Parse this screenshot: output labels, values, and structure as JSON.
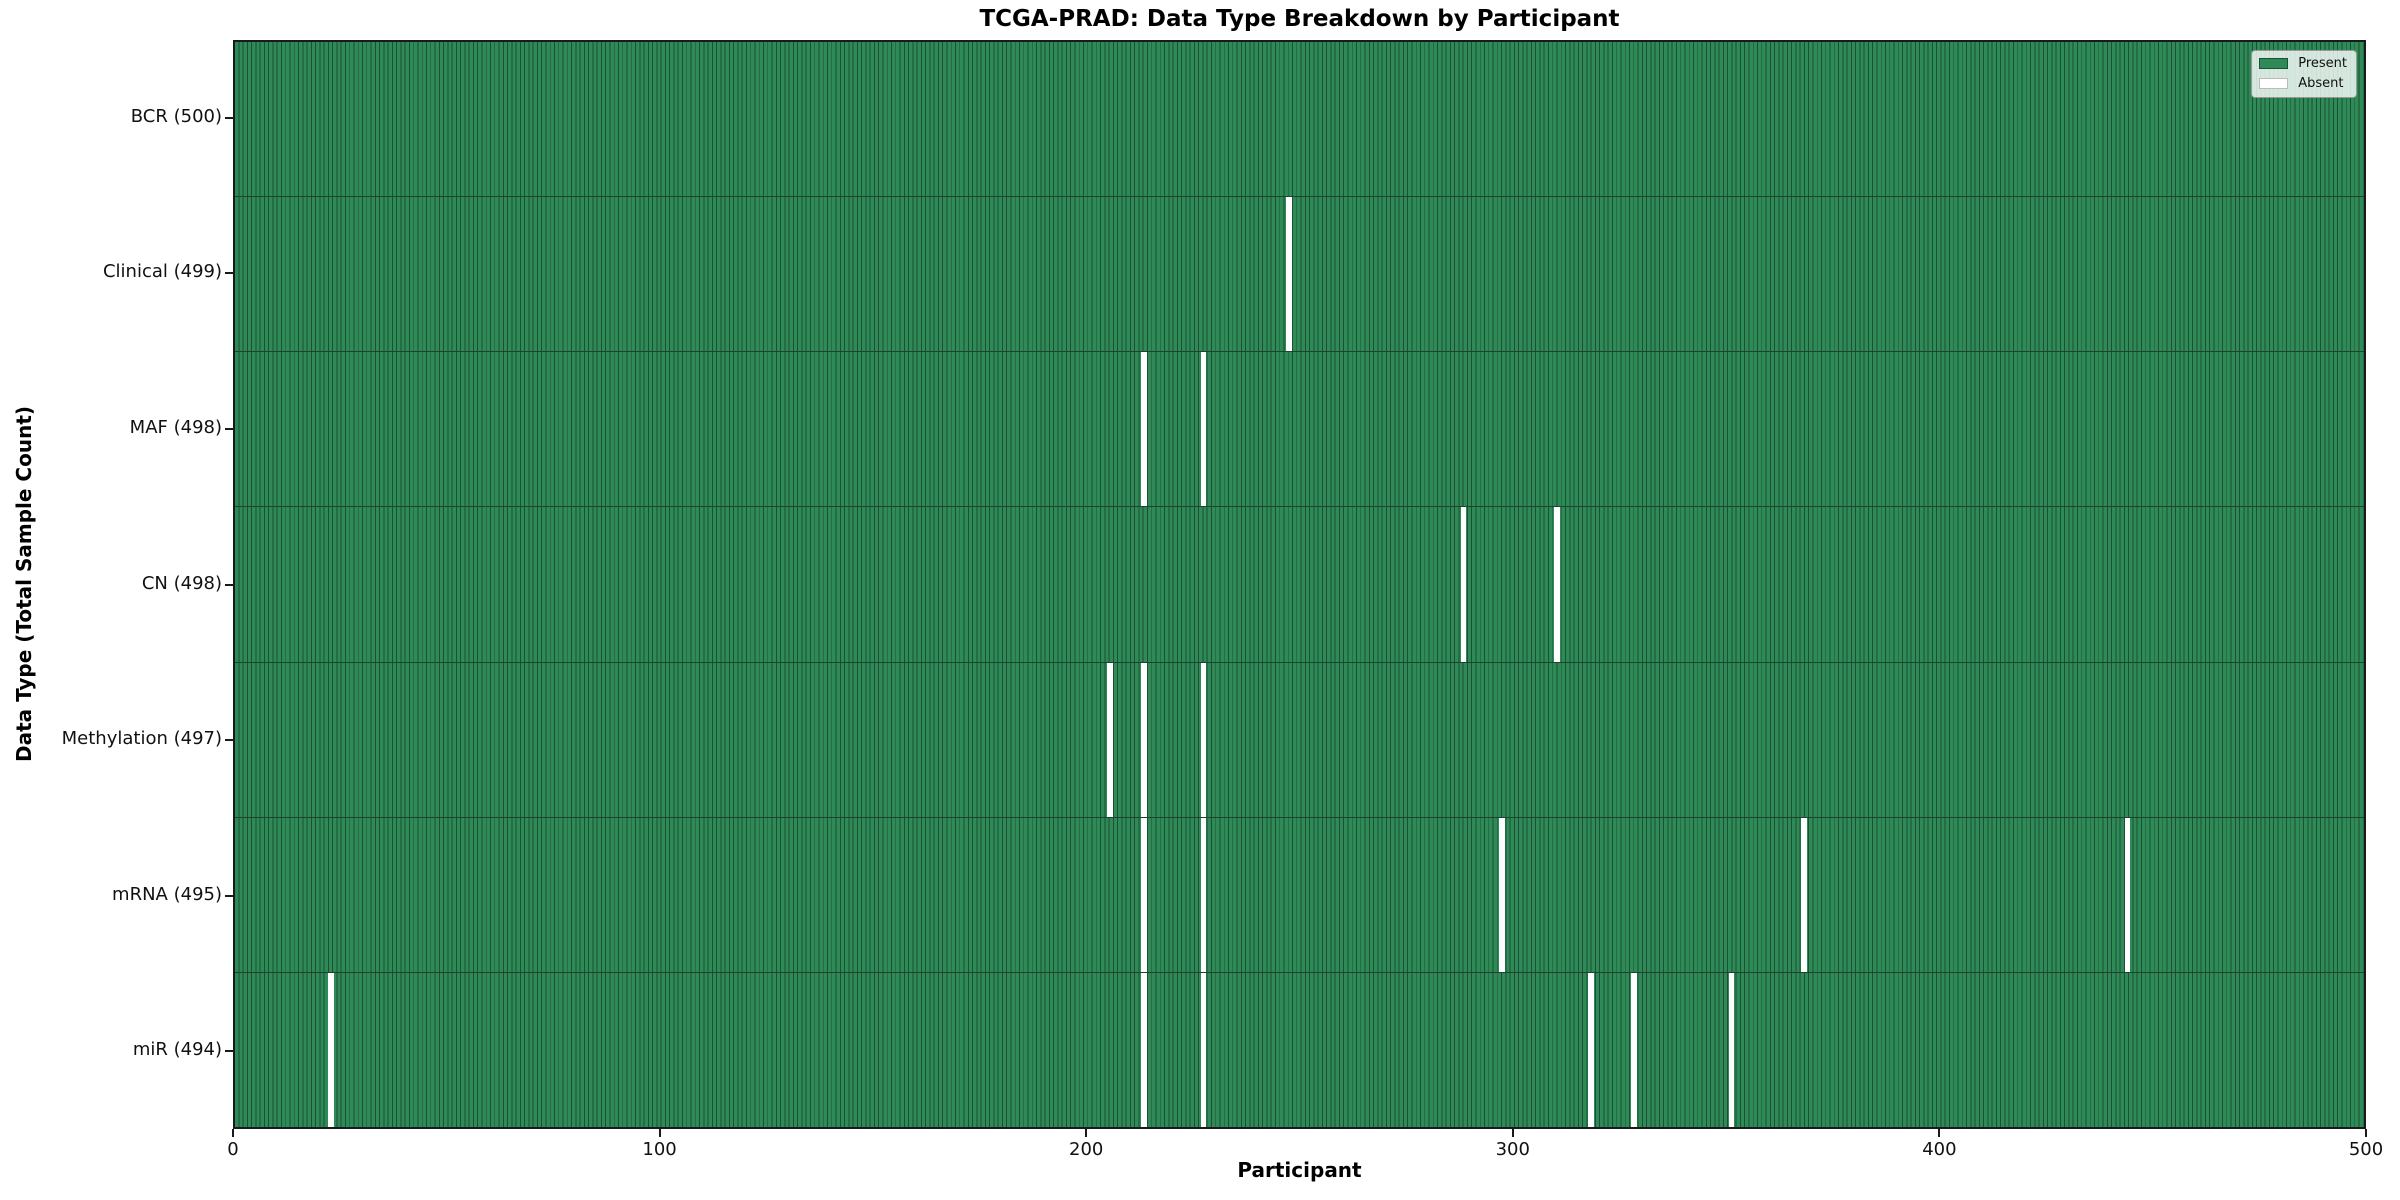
{
  "chart_data": {
    "type": "heatmap",
    "title": "TCGA-PRAD: Data Type Breakdown by Participant",
    "xlabel": "Participant",
    "ylabel": "Data Type (Total Sample Count)",
    "xlim": [
      0,
      500
    ],
    "x_ticks": [
      0,
      100,
      200,
      300,
      400,
      500
    ],
    "n_participants": 500,
    "legend": [
      {
        "label": "Present",
        "color": "#2e8b57"
      },
      {
        "label": "Absent",
        "color": "#ffffff"
      }
    ],
    "colors": {
      "present": "#2e8b57",
      "cell_edge": "#1c4f33",
      "absent": "#ffffff",
      "frame": "#1a1a1a"
    },
    "rows": [
      {
        "label": "BCR (500)",
        "data_type": "BCR",
        "present_count": 500,
        "absent_participants": []
      },
      {
        "label": "Clinical (499)",
        "data_type": "Clinical",
        "present_count": 499,
        "absent_participants": [
          247
        ]
      },
      {
        "label": "MAF (498)",
        "data_type": "MAF",
        "present_count": 498,
        "absent_participants": [
          213,
          227
        ]
      },
      {
        "label": "CN (498)",
        "data_type": "CN",
        "present_count": 498,
        "absent_participants": [
          288,
          310
        ]
      },
      {
        "label": "Methylation (497)",
        "data_type": "Methylation",
        "present_count": 497,
        "absent_participants": [
          205,
          213,
          227
        ]
      },
      {
        "label": "mRNA (495)",
        "data_type": "mRNA",
        "present_count": 495,
        "absent_participants": [
          213,
          227,
          297,
          368,
          444
        ]
      },
      {
        "label": "miR (494)",
        "data_type": "miR",
        "present_count": 494,
        "absent_participants": [
          22,
          213,
          227,
          318,
          328,
          351
        ]
      }
    ]
  }
}
